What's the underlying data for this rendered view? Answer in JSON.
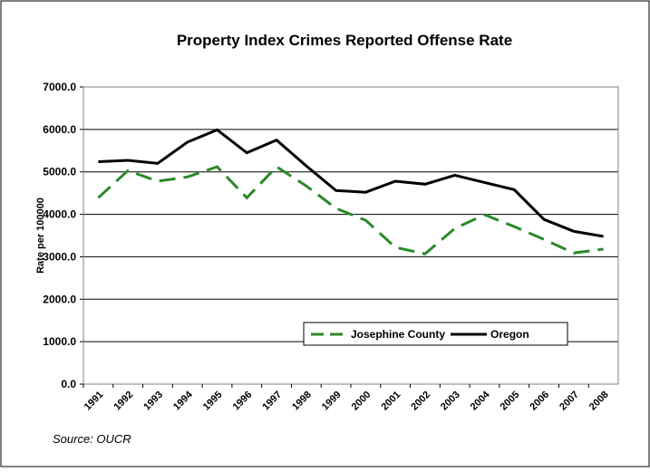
{
  "chart_data": {
    "type": "line",
    "title": "Property Index Crimes Reported Offense Rate",
    "y_label": "Rate per 100000",
    "source": "Source: OUCR",
    "categories": [
      "1991",
      "1992",
      "1993",
      "1994",
      "1995",
      "1996",
      "1997",
      "1998",
      "1999",
      "2000",
      "2001",
      "2002",
      "2003",
      "2004",
      "2005",
      "2006",
      "2007",
      "2008"
    ],
    "series": [
      {
        "name": "Josephine County",
        "color": "#2a8a2a",
        "dashed": true,
        "values": [
          4390,
          5030,
          4780,
          4880,
          5120,
          4390,
          5120,
          4670,
          4140,
          3860,
          3220,
          3070,
          3670,
          3990,
          3710,
          3410,
          3090,
          3180
        ]
      },
      {
        "name": "Oregon",
        "color": "#000000",
        "dashed": false,
        "values": [
          5240,
          5270,
          5200,
          5700,
          5990,
          5450,
          5750,
          5140,
          4560,
          4520,
          4780,
          4710,
          4920,
          4750,
          4580,
          3880,
          3600,
          3480
        ]
      }
    ],
    "ylim": [
      0,
      7000
    ],
    "yticks": [
      {
        "value": 0,
        "label": "0.0"
      },
      {
        "value": 1000,
        "label": "1000.0"
      },
      {
        "value": 2000,
        "label": "2000.0"
      },
      {
        "value": 3000,
        "label": "3000.0"
      },
      {
        "value": 4000,
        "label": "4000.0"
      },
      {
        "value": 5000,
        "label": "5000.0"
      },
      {
        "value": 6000,
        "label": "6000.0"
      },
      {
        "value": 7000,
        "label": "7000.0"
      }
    ],
    "grid": true
  }
}
